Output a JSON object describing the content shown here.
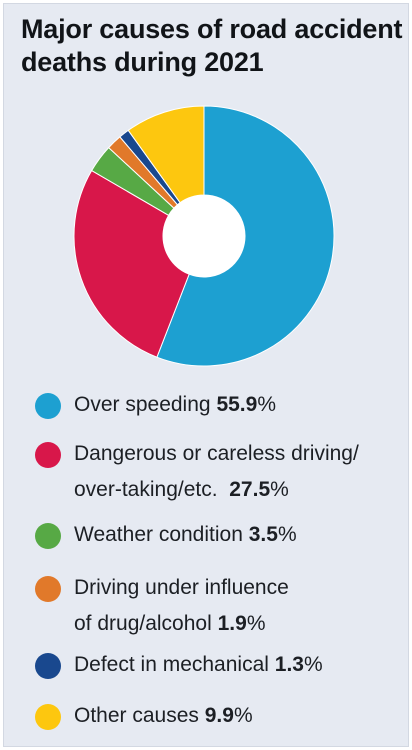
{
  "title_line1": "Major causes of road accident",
  "title_line2": "deaths during 2021",
  "chart_data": {
    "type": "pie",
    "title": "Major causes of road accident deaths during 2021",
    "donut": true,
    "categories": [
      "Over speeding",
      "Dangerous or careless driving/ over-taking/etc.",
      "Weather condition",
      "Driving under influence of drug/alcohol",
      "Defect in mechanical",
      "Other causes"
    ],
    "values": [
      55.9,
      27.5,
      3.5,
      1.9,
      1.3,
      9.9
    ],
    "unit": "%",
    "colors": [
      "#1da0d1",
      "#d8174a",
      "#57a945",
      "#e1792a",
      "#19488e",
      "#fdc70f"
    ],
    "legend_position": "bottom"
  },
  "legend": [
    {
      "lines": [
        "Over speeding"
      ],
      "value": "55.9",
      "unit": "%",
      "color": "#1da0d1"
    },
    {
      "lines": [
        "Dangerous or careless driving/",
        "over-taking/etc."
      ],
      "value": "27.5",
      "unit": "%",
      "color": "#d8174a"
    },
    {
      "lines": [
        "Weather condition"
      ],
      "value": "3.5",
      "unit": "%",
      "color": "#57a945"
    },
    {
      "lines": [
        "Driving under influence",
        "of drug/alcohol"
      ],
      "value": "1.9",
      "unit": "%",
      "color": "#e1792a"
    },
    {
      "lines": [
        "Defect in mechanical"
      ],
      "value": "1.3",
      "unit": "%",
      "color": "#19488e"
    },
    {
      "lines": [
        "Other causes"
      ],
      "value": "9.9",
      "unit": "%",
      "color": "#fdc70f"
    }
  ]
}
